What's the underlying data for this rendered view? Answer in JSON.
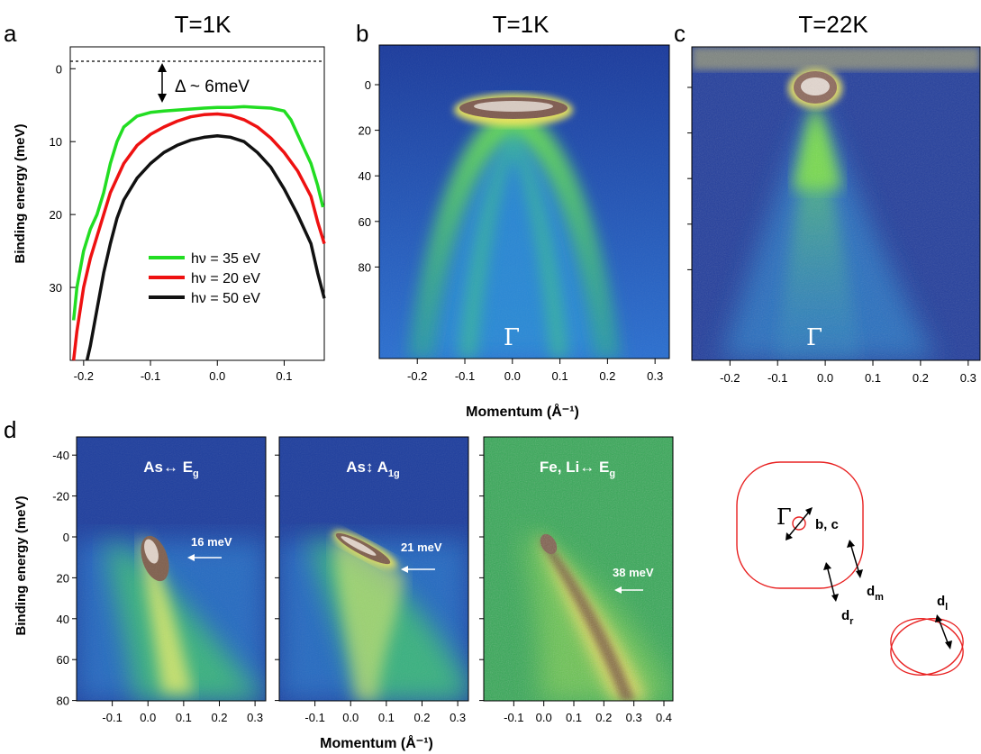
{
  "panel_a": {
    "letter": "a",
    "temperature": "T=1K",
    "gap_annotation": "Δ ~ 6meV",
    "ylabel": "Binding energy (meV)",
    "chart_data": {
      "type": "line",
      "xlabel": "",
      "ylabel": "Binding energy (meV)",
      "xlim": [
        -0.22,
        0.16
      ],
      "ylim": [
        40,
        -3
      ],
      "xticks": [
        "-0.2",
        "-0.1",
        "0.0",
        "0.1"
      ],
      "yticks": [
        "0",
        "10",
        "20",
        "30"
      ],
      "legend_position": "lower-center",
      "series": [
        {
          "name": "hν = 35 eV",
          "color": "#22dd22",
          "x": [
            -0.215,
            -0.21,
            -0.2,
            -0.19,
            -0.18,
            -0.17,
            -0.16,
            -0.15,
            -0.14,
            -0.12,
            -0.1,
            -0.08,
            -0.05,
            -0.02,
            0.0,
            0.02,
            0.04,
            0.06,
            0.08,
            0.1,
            0.11,
            0.12,
            0.13,
            0.14,
            0.15,
            0.158
          ],
          "y": [
            34.5,
            30,
            25,
            22,
            20,
            17,
            13,
            10,
            8,
            6.5,
            6,
            5.8,
            5.6,
            5.4,
            5.3,
            5.3,
            5.2,
            5.3,
            5.4,
            5.8,
            7,
            9,
            11,
            13,
            16,
            19
          ]
        },
        {
          "name": "hν = 20 eV",
          "color": "#ee1111",
          "x": [
            -0.215,
            -0.21,
            -0.2,
            -0.19,
            -0.18,
            -0.17,
            -0.16,
            -0.14,
            -0.12,
            -0.1,
            -0.08,
            -0.06,
            -0.04,
            -0.02,
            0.0,
            0.02,
            0.04,
            0.06,
            0.08,
            0.1,
            0.12,
            0.14,
            0.15,
            0.16
          ],
          "y": [
            40,
            36,
            30,
            26,
            23,
            20,
            17,
            13,
            10.5,
            9,
            8,
            7.2,
            6.6,
            6.3,
            6.2,
            6.4,
            7,
            8,
            9.5,
            11.5,
            14,
            17.5,
            21,
            24
          ]
        },
        {
          "name": "hν = 50 eV",
          "color": "#111111",
          "x": [
            -0.195,
            -0.19,
            -0.18,
            -0.17,
            -0.16,
            -0.15,
            -0.14,
            -0.12,
            -0.1,
            -0.08,
            -0.06,
            -0.04,
            -0.02,
            0.0,
            0.02,
            0.04,
            0.06,
            0.08,
            0.1,
            0.12,
            0.14,
            0.15,
            0.16
          ],
          "y": [
            40,
            38,
            33,
            28,
            24,
            20.5,
            18,
            15,
            13,
            11.5,
            10.5,
            9.8,
            9.4,
            9.2,
            9.4,
            10,
            11.5,
            13.5,
            16.5,
            20,
            24,
            28,
            31.5
          ]
        }
      ]
    }
  },
  "panel_b": {
    "letter": "b",
    "temperature": "T=1K",
    "point_label": "Γ",
    "xticks": [
      "-0.2",
      "-0.1",
      "0.0",
      "0.1",
      "0.2",
      "0.3"
    ],
    "yticks": [
      "0",
      "20",
      "40",
      "60",
      "80"
    ]
  },
  "panel_c": {
    "letter": "c",
    "temperature": "T=22K",
    "point_label": "Γ",
    "xticks": [
      "-0.2",
      "-0.1",
      "0.0",
      "0.1",
      "0.2",
      "0.3"
    ]
  },
  "top_xlabel": "Momentum (Å⁻¹)",
  "panel_d": {
    "letter": "d",
    "ylabel": "Binding energy (meV)",
    "xlabel": "Momentum (Å⁻¹)",
    "yticks": [
      "-40",
      "-20",
      "0",
      "20",
      "40",
      "60",
      "80"
    ],
    "subpanels": [
      {
        "mode_prefix": "As↔ E",
        "mode_sub": "g",
        "energy": "16 meV",
        "xticks": [
          "-0.1",
          "0.0",
          "0.1",
          "0.2",
          "0.3"
        ]
      },
      {
        "mode_prefix": "As↕ A",
        "mode_sub": "1g",
        "energy": "21 meV",
        "xticks": [
          "-0.1",
          "0.0",
          "0.1",
          "0.2",
          "0.3"
        ]
      },
      {
        "mode_prefix": "Fe, Li↔ E",
        "mode_sub": "g",
        "energy": "38 meV",
        "xticks": [
          "-0.1",
          "0.0",
          "0.1",
          "0.2",
          "0.3",
          "0.4"
        ]
      }
    ]
  },
  "schematic": {
    "gamma": "Γ",
    "bc_label": "b, c",
    "dm_main": "d",
    "dm_sub": "m",
    "dr_main": "d",
    "dr_sub": "r",
    "dl_main": "d",
    "dl_sub": "l",
    "contour_color": "#e82020"
  }
}
